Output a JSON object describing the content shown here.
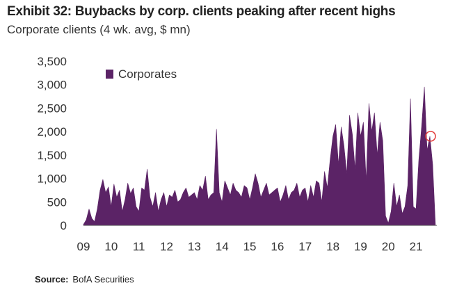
{
  "chart_data": {
    "type": "area",
    "title": "Exhibit 32: Buybacks by corp. clients peaking after recent highs",
    "subtitle": "Corporate clients (4 wk. avg, $ mn)",
    "xlabel": "",
    "ylabel": "",
    "ylim": [
      0,
      3500
    ],
    "yticks": [
      "0",
      "500",
      "1,000",
      "1,500",
      "2,000",
      "2,500",
      "3,000",
      "3,500"
    ],
    "xlim": [
      2009.0,
      2021.7
    ],
    "xticks": [
      "09",
      "10",
      "11",
      "12",
      "13",
      "14",
      "15",
      "16",
      "17",
      "18",
      "19",
      "20",
      "21"
    ],
    "legend": "top-left",
    "color": "#5b2366",
    "annotation_color": "#e23a3a",
    "annotation_point": {
      "x": 2021.6,
      "y": 1900
    },
    "series": [
      {
        "name": "Corporates",
        "x": [
          2009.0,
          2009.1,
          2009.2,
          2009.3,
          2009.4,
          2009.5,
          2009.6,
          2009.7,
          2009.8,
          2009.9,
          2010.0,
          2010.1,
          2010.2,
          2010.3,
          2010.4,
          2010.5,
          2010.6,
          2010.7,
          2010.8,
          2010.9,
          2011.0,
          2011.1,
          2011.2,
          2011.3,
          2011.4,
          2011.5,
          2011.6,
          2011.7,
          2011.8,
          2011.9,
          2012.0,
          2012.1,
          2012.2,
          2012.3,
          2012.4,
          2012.5,
          2012.6,
          2012.7,
          2012.8,
          2012.9,
          2013.0,
          2013.1,
          2013.2,
          2013.3,
          2013.4,
          2013.5,
          2013.6,
          2013.7,
          2013.8,
          2013.9,
          2014.0,
          2014.1,
          2014.2,
          2014.3,
          2014.4,
          2014.5,
          2014.6,
          2014.7,
          2014.8,
          2014.9,
          2015.0,
          2015.1,
          2015.2,
          2015.3,
          2015.4,
          2015.5,
          2015.6,
          2015.7,
          2015.8,
          2015.9,
          2016.0,
          2016.1,
          2016.2,
          2016.3,
          2016.4,
          2016.5,
          2016.6,
          2016.7,
          2016.8,
          2016.9,
          2017.0,
          2017.1,
          2017.2,
          2017.3,
          2017.4,
          2017.5,
          2017.6,
          2017.7,
          2017.8,
          2017.9,
          2018.0,
          2018.1,
          2018.2,
          2018.3,
          2018.4,
          2018.5,
          2018.6,
          2018.7,
          2018.8,
          2018.9,
          2019.0,
          2019.1,
          2019.2,
          2019.3,
          2019.4,
          2019.5,
          2019.6,
          2019.7,
          2019.8,
          2019.9,
          2020.0,
          2020.1,
          2020.2,
          2020.3,
          2020.4,
          2020.5,
          2020.6,
          2020.7,
          2020.8,
          2020.9,
          2021.0,
          2021.1,
          2021.2,
          2021.3,
          2021.4,
          2021.5,
          2021.6,
          2021.7
        ],
        "values": [
          20,
          120,
          350,
          150,
          80,
          350,
          750,
          980,
          700,
          820,
          400,
          880,
          600,
          750,
          300,
          550,
          900,
          680,
          800,
          400,
          300,
          800,
          750,
          1200,
          600,
          400,
          700,
          300,
          550,
          700,
          400,
          650,
          600,
          750,
          500,
          550,
          700,
          800,
          600,
          650,
          700,
          550,
          850,
          750,
          1050,
          550,
          650,
          700,
          2050,
          700,
          500,
          950,
          800,
          650,
          900,
          750,
          700,
          600,
          850,
          800,
          550,
          800,
          1100,
          900,
          600,
          750,
          900,
          650,
          700,
          750,
          800,
          500,
          650,
          850,
          550,
          700,
          750,
          900,
          600,
          750,
          800,
          500,
          850,
          600,
          950,
          900,
          500,
          1150,
          800,
          1400,
          1900,
          2150,
          1300,
          2100,
          1700,
          1100,
          2350,
          1950,
          1200,
          2400,
          1900,
          2200,
          950,
          2600,
          2000,
          2400,
          1500,
          2200,
          1800,
          200,
          50,
          300,
          900,
          400,
          650,
          250,
          400,
          850,
          2700,
          400,
          350,
          1400,
          2100,
          2950,
          1600,
          1900,
          1300,
          0
        ]
      }
    ]
  },
  "footer": {
    "source_label": "Source:",
    "source_value": "BofA Securities"
  }
}
